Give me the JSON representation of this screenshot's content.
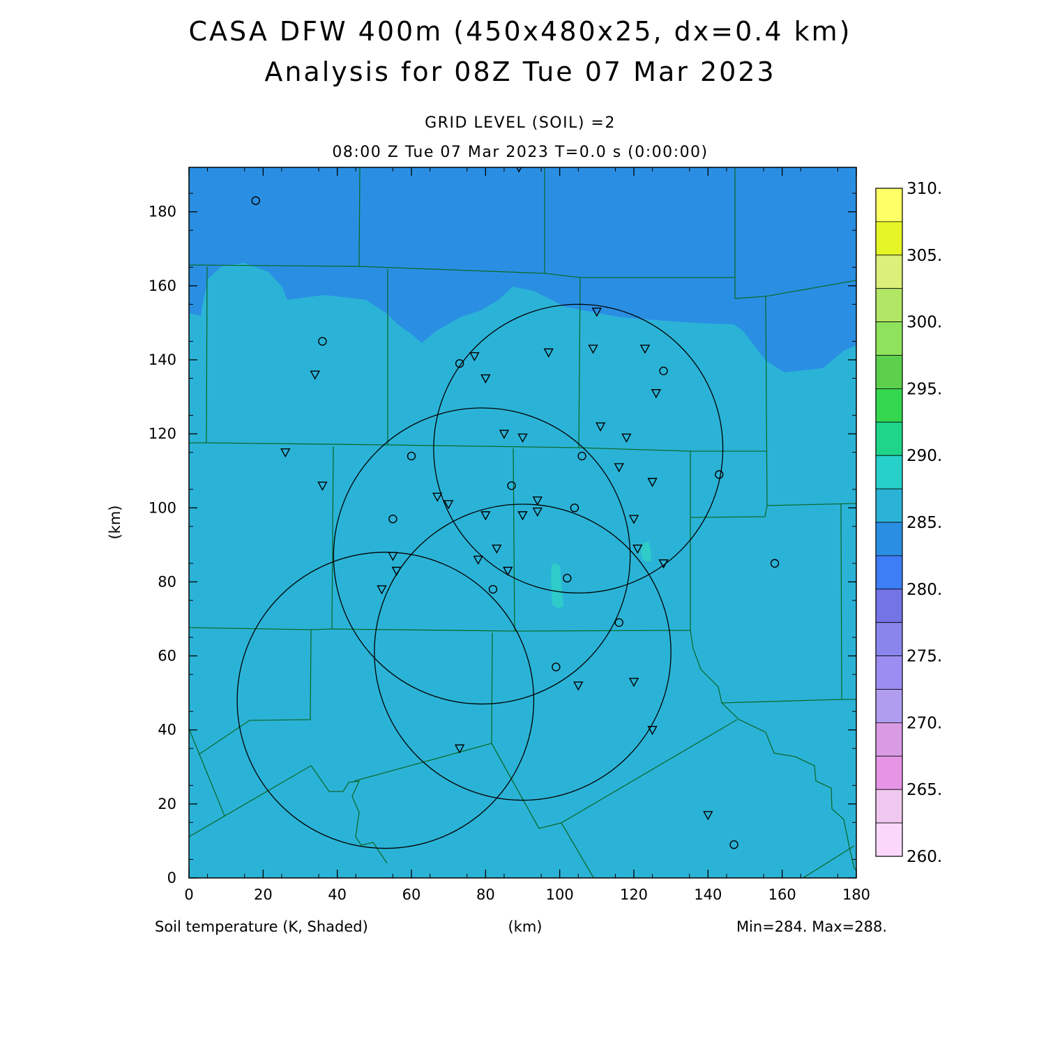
{
  "title": {
    "line1": "CASA DFW 400m (450x480x25, dx=0.4 km)",
    "line2": "Analysis for 08Z Tue 07 Mar 2023"
  },
  "subtitle": {
    "level": "GRID LEVEL (SOIL) =2",
    "time": "08:00 Z Tue 07 Mar 2023   T=0.0 s (0:00:00)"
  },
  "footer": {
    "variable": "Soil temperature (K, Shaded)",
    "xunit": "(km)",
    "minmax": "Min=284. Max=288."
  },
  "colors": {
    "field_cold": "#2a8fe3",
    "field_main": "#2bb3d7",
    "field_warm": "#2ecbc8",
    "county_border": "#0b6b2f"
  },
  "chart_data": {
    "type": "heatmap",
    "xlabel": "(km)",
    "ylabel": "(km)",
    "xlim": [
      0,
      180
    ],
    "ylim": [
      0,
      192
    ],
    "xticks": [
      0,
      20,
      40,
      60,
      80,
      100,
      120,
      140,
      160,
      180
    ],
    "yticks": [
      0,
      20,
      40,
      60,
      80,
      100,
      120,
      140,
      160,
      180
    ],
    "colorbar": {
      "labels": [
        "310.",
        "305.",
        "300.",
        "295.",
        "290.",
        "285.",
        "280.",
        "275.",
        "270.",
        "265.",
        "260."
      ],
      "colors": [
        "#ffff66",
        "#e6f526",
        "#dcef78",
        "#b2e665",
        "#8fe35c",
        "#5ccf4d",
        "#35d74f",
        "#1fd58a",
        "#27d0c8",
        "#2bb3d7",
        "#2a8fe3",
        "#3d7df5",
        "#7474e6",
        "#8a85ec",
        "#9b8ef2",
        "#b09df0",
        "#d99be3",
        "#e695e6",
        "#f0c8ef",
        "#fbd8fb"
      ]
    },
    "radar_rings": [
      {
        "center": [
          105,
          116
        ],
        "radius": 39
      },
      {
        "center": [
          79,
          87
        ],
        "radius": 40
      },
      {
        "center": [
          90,
          61
        ],
        "radius": 40
      },
      {
        "center": [
          53,
          48
        ],
        "radius": 40
      }
    ],
    "stations_circle": [
      [
        18,
        183
      ],
      [
        36,
        145
      ],
      [
        73,
        139
      ],
      [
        128,
        137
      ],
      [
        60,
        114
      ],
      [
        106,
        114
      ],
      [
        143,
        109
      ],
      [
        87,
        106
      ],
      [
        55,
        97
      ],
      [
        104,
        100
      ],
      [
        158,
        85
      ],
      [
        102,
        81
      ],
      [
        82,
        78
      ],
      [
        116,
        69
      ],
      [
        99,
        57
      ],
      [
        147,
        9
      ]
    ],
    "stations_triangle": [
      [
        89,
        192
      ],
      [
        110,
        153
      ],
      [
        109,
        143
      ],
      [
        123,
        143
      ],
      [
        97,
        142
      ],
      [
        77,
        141
      ],
      [
        34,
        136
      ],
      [
        80,
        135
      ],
      [
        126,
        131
      ],
      [
        111,
        122
      ],
      [
        85,
        120
      ],
      [
        90,
        119
      ],
      [
        118,
        119
      ],
      [
        26,
        115
      ],
      [
        116,
        111
      ],
      [
        125,
        107
      ],
      [
        36,
        106
      ],
      [
        67,
        103
      ],
      [
        70,
        101
      ],
      [
        94,
        102
      ],
      [
        80,
        98
      ],
      [
        90,
        98
      ],
      [
        94,
        99
      ],
      [
        120,
        97
      ],
      [
        83,
        89
      ],
      [
        121,
        89
      ],
      [
        55,
        87
      ],
      [
        78,
        86
      ],
      [
        128,
        85
      ],
      [
        56,
        83
      ],
      [
        86,
        83
      ],
      [
        52,
        78
      ],
      [
        105,
        52
      ],
      [
        120,
        53
      ],
      [
        125,
        40
      ],
      [
        73,
        35
      ],
      [
        140,
        17
      ]
    ]
  }
}
